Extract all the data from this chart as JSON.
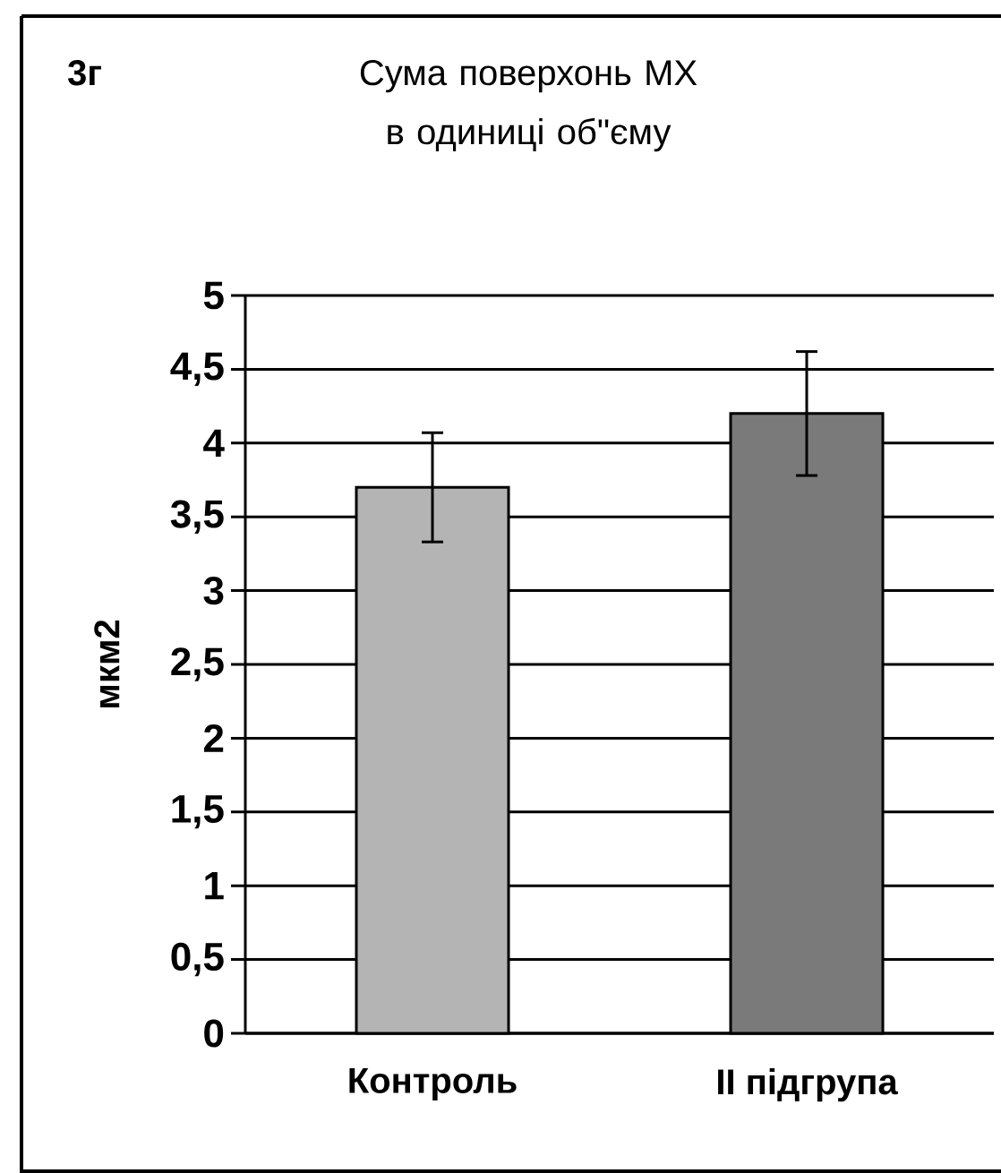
{
  "chart_data": {
    "type": "bar",
    "title": "Сума поверхонь МХ в одиниці об\"єму",
    "ylabel": "мкм2",
    "annotations": [
      "3г"
    ],
    "categories": [
      "Контроль",
      "II підгрупа"
    ],
    "values": [
      3.7,
      4.2
    ],
    "errors": [
      0.37,
      0.42
    ],
    "colors": [
      "#b4b4b4",
      "#7a7a7a"
    ],
    "ylim": [
      0,
      5
    ],
    "yticks": [
      0,
      {
        "value": 0.5,
        "label": "0,5"
      },
      1,
      {
        "value": 1.5,
        "label": "1,5"
      },
      2,
      {
        "value": 2.5,
        "label": "2,5"
      },
      3,
      {
        "value": 3.5,
        "label": "3,5"
      },
      4,
      {
        "value": 4.5,
        "label": "4,5"
      },
      5
    ],
    "grid": "y"
  }
}
